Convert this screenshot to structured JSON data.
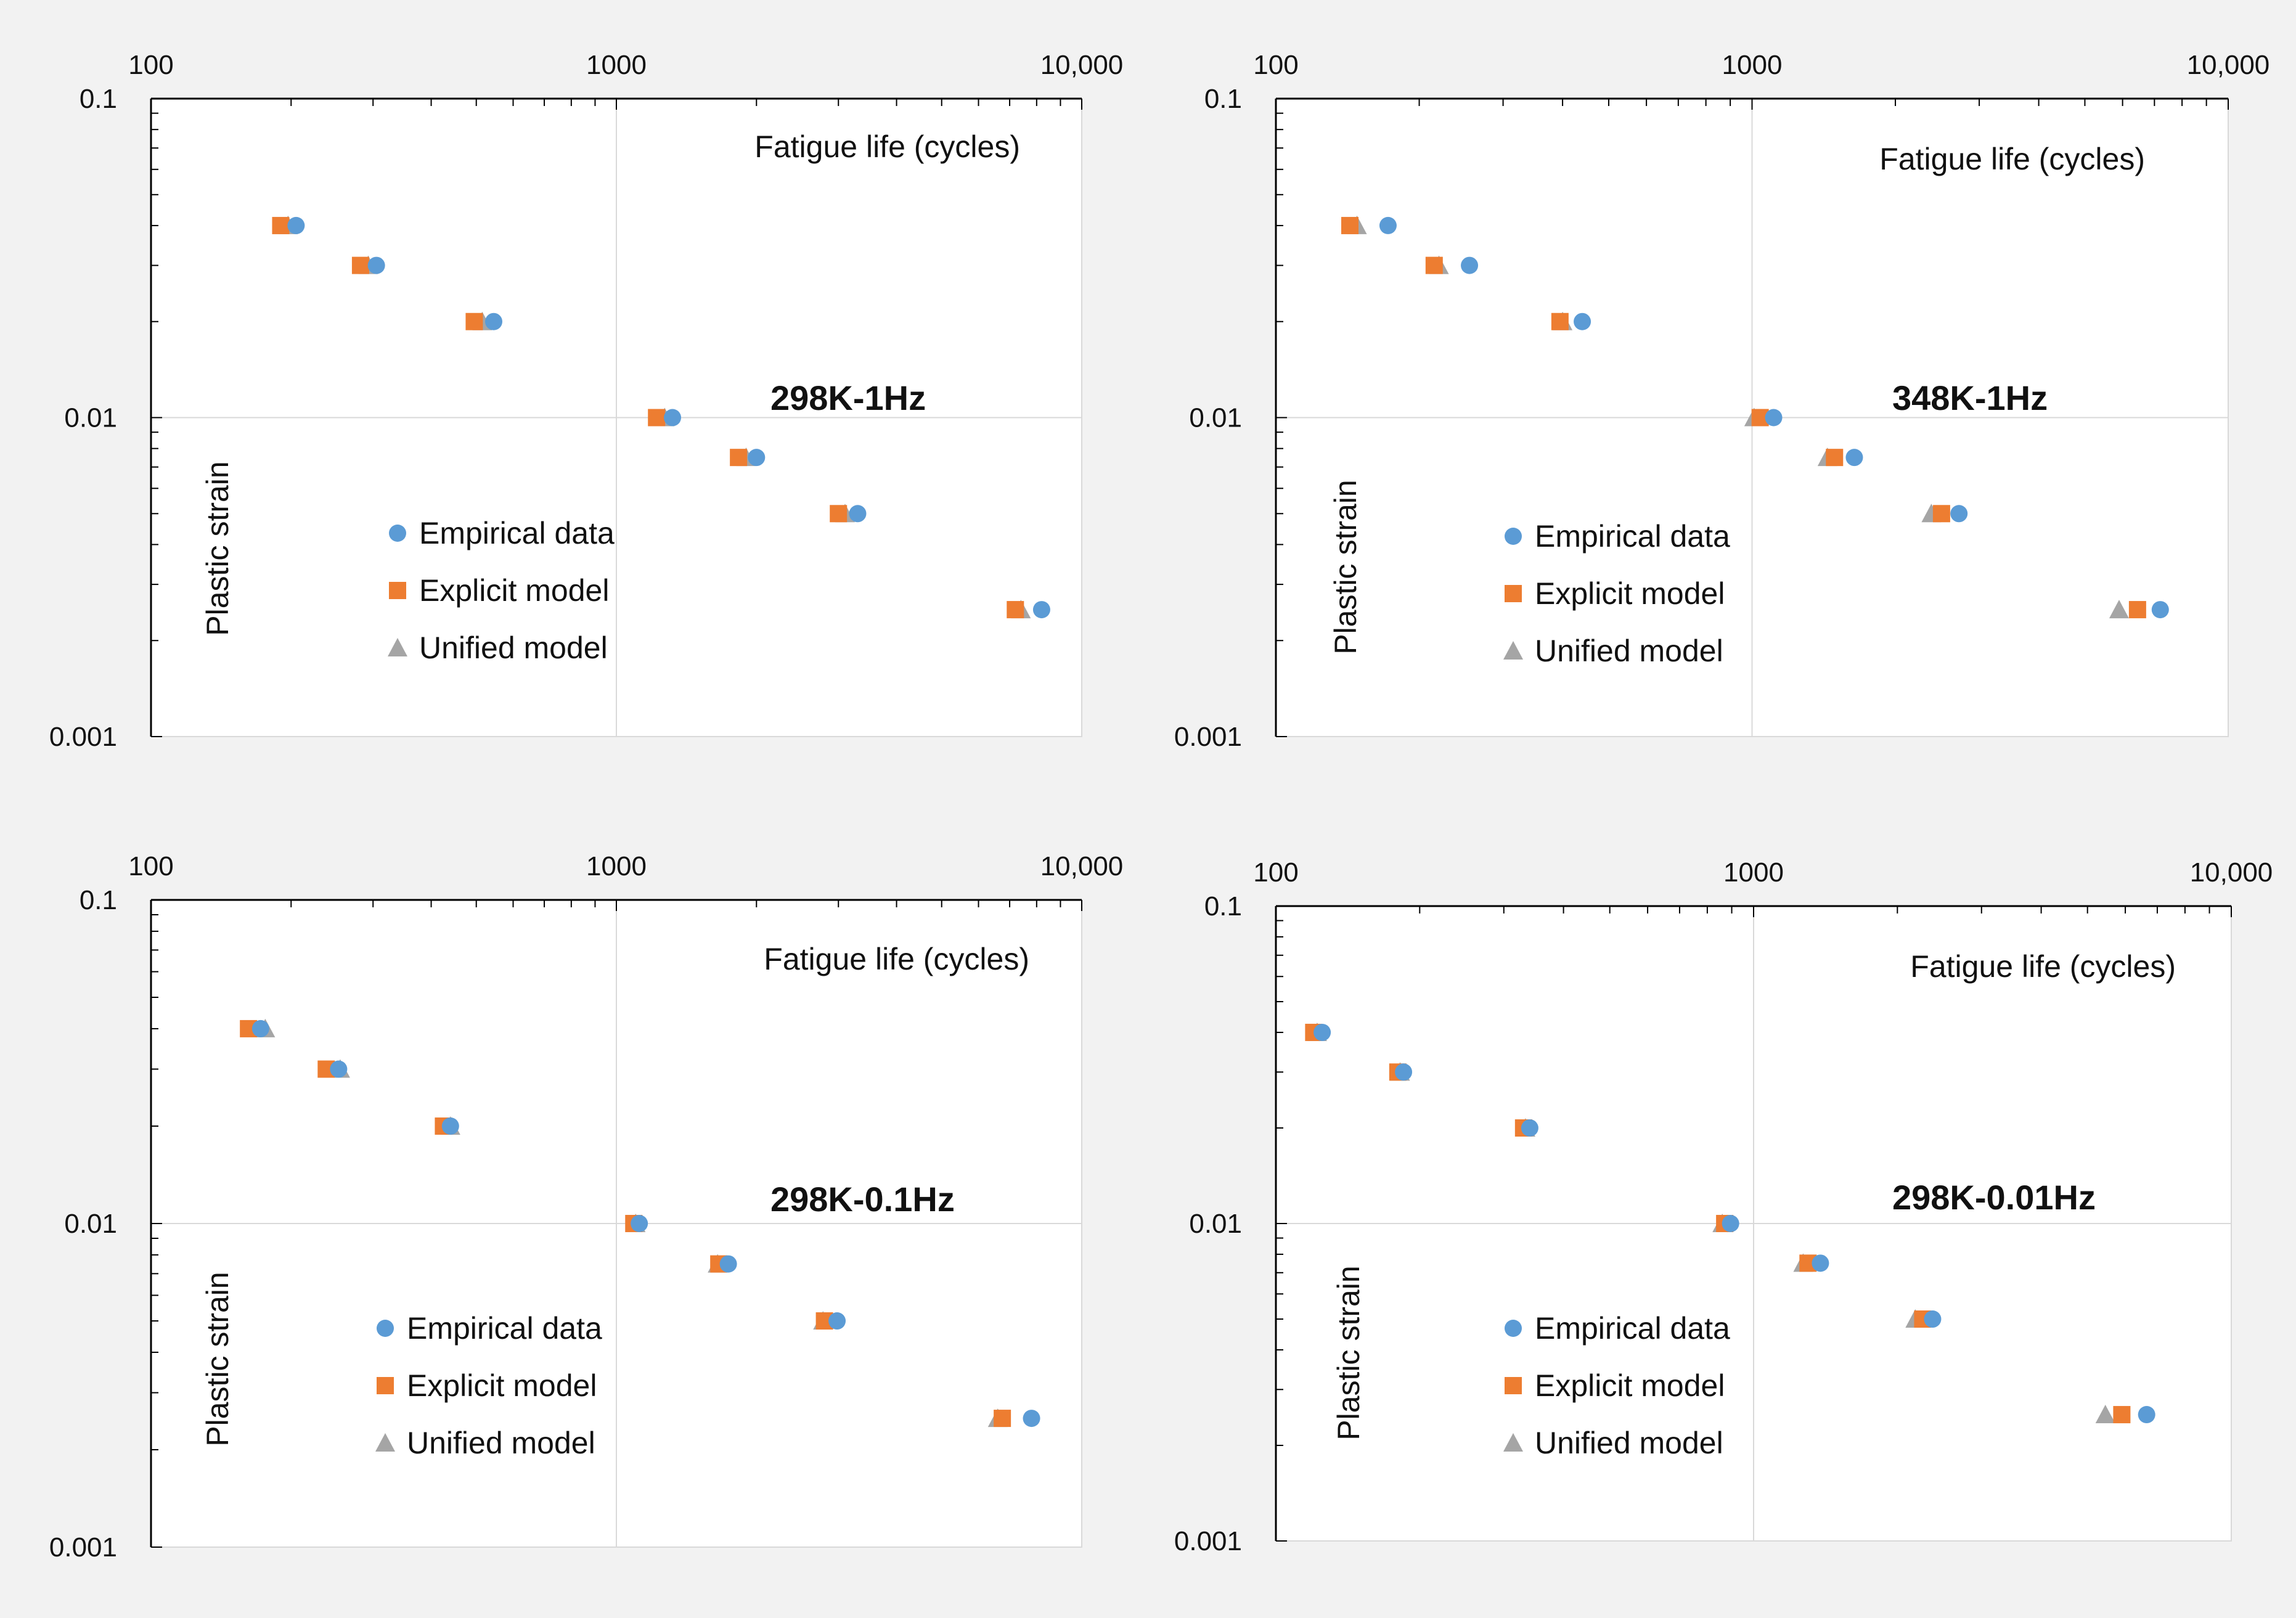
{
  "colors": {
    "empirical": "#5b9bd5",
    "explicit": "#ed7d31",
    "unified": "#a5a5a5",
    "grid": "#d9d9d9",
    "axis": "#000000",
    "panel_bg": "#f2f2f2"
  },
  "chart_data": [
    {
      "type": "scatter",
      "title": "298K-1Hz",
      "xlabel": "Fatigue life (cycles)",
      "ylabel": "Plastic strain",
      "xscale": "log",
      "yscale": "log",
      "xlim": [
        100,
        10000
      ],
      "ylim": [
        0.001,
        0.1
      ],
      "x_tick_labels": [
        "100",
        "1000",
        "10,000"
      ],
      "y_tick_labels": [
        "0.1",
        "0.01",
        "0.001"
      ],
      "legend_position": "center-left",
      "series": [
        {
          "name": "Empirical data",
          "marker": "circle",
          "points": [
            [
              205,
              0.04
            ],
            [
              305,
              0.03
            ],
            [
              545,
              0.02
            ],
            [
              1320,
              0.01
            ],
            [
              2000,
              0.0075
            ],
            [
              3300,
              0.005
            ],
            [
              8200,
              0.0025
            ]
          ]
        },
        {
          "name": "Explicit model",
          "marker": "square",
          "points": [
            [
              190,
              0.04
            ],
            [
              282,
              0.03
            ],
            [
              495,
              0.02
            ],
            [
              1220,
              0.01
            ],
            [
              1830,
              0.0075
            ],
            [
              3000,
              0.005
            ],
            [
              7200,
              0.0025
            ]
          ]
        },
        {
          "name": "Unified model",
          "marker": "triangle",
          "points": [
            [
              197,
              0.04
            ],
            [
              293,
              0.03
            ],
            [
              515,
              0.02
            ],
            [
              1270,
              0.01
            ],
            [
              1900,
              0.0075
            ],
            [
              3100,
              0.005
            ],
            [
              7400,
              0.0025
            ]
          ]
        }
      ]
    },
    {
      "type": "scatter",
      "title": "348K-1Hz",
      "xlabel": "Fatigue life (cycles)",
      "ylabel": "Plastic strain",
      "xscale": "log",
      "yscale": "log",
      "xlim": [
        100,
        10000
      ],
      "ylim": [
        0.001,
        0.1
      ],
      "x_tick_labels": [
        "100",
        "1000",
        "10,000"
      ],
      "y_tick_labels": [
        "0.1",
        "0.01",
        "0.001"
      ],
      "legend_position": "center-left",
      "series": [
        {
          "name": "Empirical data",
          "marker": "circle",
          "points": [
            [
              172,
              0.04
            ],
            [
              255,
              0.03
            ],
            [
              440,
              0.02
            ],
            [
              1110,
              0.01
            ],
            [
              1640,
              0.0075
            ],
            [
              2720,
              0.005
            ],
            [
              7200,
              0.0025
            ]
          ]
        },
        {
          "name": "Explicit model",
          "marker": "square",
          "points": [
            [
              143,
              0.04
            ],
            [
              215,
              0.03
            ],
            [
              395,
              0.02
            ],
            [
              1040,
              0.01
            ],
            [
              1490,
              0.0075
            ],
            [
              2500,
              0.005
            ],
            [
              6450,
              0.0025
            ]
          ]
        },
        {
          "name": "Unified model",
          "marker": "triangle",
          "points": [
            [
              148,
              0.04
            ],
            [
              220,
              0.03
            ],
            [
              400,
              0.02
            ],
            [
              1010,
              0.01
            ],
            [
              1440,
              0.0075
            ],
            [
              2380,
              0.005
            ],
            [
              5900,
              0.0025
            ]
          ]
        }
      ]
    },
    {
      "type": "scatter",
      "title": "298K-0.1Hz",
      "xlabel": "Fatigue life (cycles)",
      "ylabel": "Plastic strain",
      "xscale": "log",
      "yscale": "log",
      "xlim": [
        100,
        10000
      ],
      "ylim": [
        0.001,
        0.1
      ],
      "x_tick_labels": [
        "100",
        "1000",
        "10,000"
      ],
      "y_tick_labels": [
        "0.1",
        "0.01",
        "0.001"
      ],
      "legend_position": "center-left",
      "series": [
        {
          "name": "Empirical data",
          "marker": "circle",
          "points": [
            [
              172,
              0.04
            ],
            [
              253,
              0.03
            ],
            [
              440,
              0.02
            ],
            [
              1120,
              0.01
            ],
            [
              1740,
              0.0075
            ],
            [
              2980,
              0.005
            ],
            [
              7800,
              0.0025
            ]
          ]
        },
        {
          "name": "Explicit model",
          "marker": "square",
          "points": [
            [
              162,
              0.04
            ],
            [
              238,
              0.03
            ],
            [
              425,
              0.02
            ],
            [
              1090,
              0.01
            ],
            [
              1660,
              0.0075
            ],
            [
              2800,
              0.005
            ],
            [
              6750,
              0.0025
            ]
          ]
        },
        {
          "name": "Unified model",
          "marker": "triangle",
          "points": [
            [
              176,
              0.04
            ],
            [
              255,
              0.03
            ],
            [
              440,
              0.02
            ],
            [
              1100,
              0.01
            ],
            [
              1650,
              0.0075
            ],
            [
              2780,
              0.005
            ],
            [
              6600,
              0.0025
            ]
          ]
        }
      ]
    },
    {
      "type": "scatter",
      "title": "298K-0.01Hz",
      "xlabel": "Fatigue life (cycles)",
      "ylabel": "Plastic strain",
      "xscale": "log",
      "yscale": "log",
      "xlim": [
        100,
        10000
      ],
      "ylim": [
        0.001,
        0.1
      ],
      "x_tick_labels": [
        "100",
        "1000",
        "10,000"
      ],
      "y_tick_labels": [
        "0.1",
        "0.01",
        "0.001"
      ],
      "legend_position": "center-left",
      "series": [
        {
          "name": "Empirical data",
          "marker": "circle",
          "points": [
            [
              125,
              0.04
            ],
            [
              185,
              0.03
            ],
            [
              340,
              0.02
            ],
            [
              895,
              0.01
            ],
            [
              1380,
              0.0075
            ],
            [
              2370,
              0.005
            ],
            [
              6650,
              0.0025
            ]
          ]
        },
        {
          "name": "Explicit model",
          "marker": "square",
          "points": [
            [
              120,
              0.04
            ],
            [
              180,
              0.03
            ],
            [
              330,
              0.02
            ],
            [
              870,
              0.01
            ],
            [
              1300,
              0.0075
            ],
            [
              2260,
              0.005
            ],
            [
              5900,
              0.0025
            ]
          ]
        },
        {
          "name": "Unified model",
          "marker": "triangle",
          "points": [
            [
              122,
              0.04
            ],
            [
              182,
              0.03
            ],
            [
              333,
              0.02
            ],
            [
              860,
              0.01
            ],
            [
              1270,
              0.0075
            ],
            [
              2180,
              0.005
            ],
            [
              5450,
              0.0025
            ]
          ]
        }
      ]
    }
  ]
}
